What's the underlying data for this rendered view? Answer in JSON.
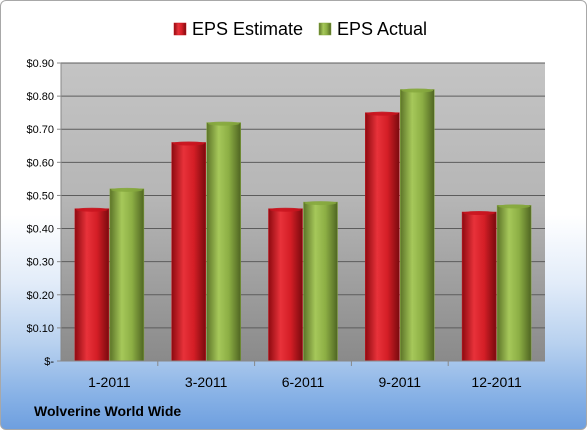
{
  "chart_data": {
    "type": "bar",
    "categories": [
      "1-2011",
      "3-2011",
      "6-2011",
      "9-2011",
      "12-2011"
    ],
    "series": [
      {
        "name": "EPS Estimate",
        "values": [
          0.46,
          0.66,
          0.46,
          0.75,
          0.45
        ],
        "color": "#c8141e"
      },
      {
        "name": "EPS Actual",
        "values": [
          0.52,
          0.72,
          0.48,
          0.82,
          0.47
        ],
        "color": "#86a83e"
      }
    ],
    "ylim": [
      0,
      0.9
    ],
    "y_ticks": [
      {
        "value": 0.9,
        "label": "$0.90"
      },
      {
        "value": 0.8,
        "label": "$0.80"
      },
      {
        "value": 0.7,
        "label": "$0.70"
      },
      {
        "value": 0.6,
        "label": "$0.60"
      },
      {
        "value": 0.5,
        "label": "$0.50"
      },
      {
        "value": 0.4,
        "label": "$0.40"
      },
      {
        "value": 0.3,
        "label": "$0.30"
      },
      {
        "value": 0.2,
        "label": "$0.20"
      },
      {
        "value": 0.1,
        "label": "$0.10"
      },
      {
        "value": 0,
        "label": "$-"
      }
    ],
    "grid": true,
    "legend_position": "top"
  },
  "footer": {
    "company": "Wolverine World Wide"
  }
}
